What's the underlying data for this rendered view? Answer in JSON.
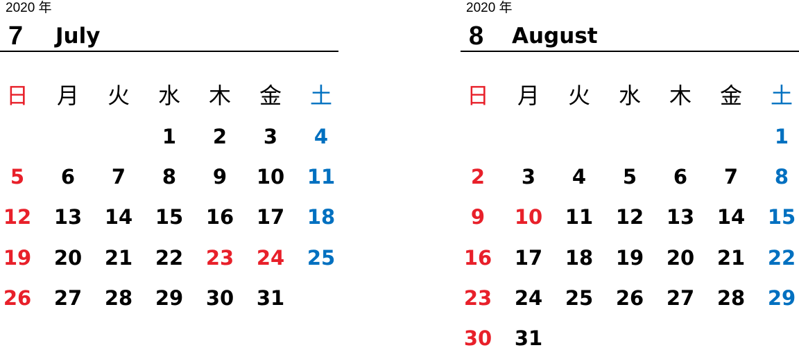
{
  "colors": {
    "sunday_holiday": "#e8202a",
    "saturday": "#0070c0",
    "text": "#000000"
  },
  "weekdays": [
    "日",
    "月",
    "火",
    "水",
    "木",
    "金",
    "土"
  ],
  "months": [
    {
      "year_label": "2020 年",
      "number": "7",
      "name": "July",
      "holidays": [
        23,
        24
      ],
      "weeks": [
        [
          null,
          null,
          null,
          1,
          2,
          3,
          4
        ],
        [
          5,
          6,
          7,
          8,
          9,
          10,
          11
        ],
        [
          12,
          13,
          14,
          15,
          16,
          17,
          18
        ],
        [
          19,
          20,
          21,
          22,
          23,
          24,
          25
        ],
        [
          26,
          27,
          28,
          29,
          30,
          31,
          null
        ]
      ]
    },
    {
      "year_label": "2020 年",
      "number": "8",
      "name": "August",
      "holidays": [
        10
      ],
      "weeks": [
        [
          null,
          null,
          null,
          null,
          null,
          null,
          1
        ],
        [
          2,
          3,
          4,
          5,
          6,
          7,
          8
        ],
        [
          9,
          10,
          11,
          12,
          13,
          14,
          15
        ],
        [
          16,
          17,
          18,
          19,
          20,
          21,
          22
        ],
        [
          23,
          24,
          25,
          26,
          27,
          28,
          29
        ],
        [
          30,
          31,
          null,
          null,
          null,
          null,
          null
        ]
      ]
    }
  ]
}
